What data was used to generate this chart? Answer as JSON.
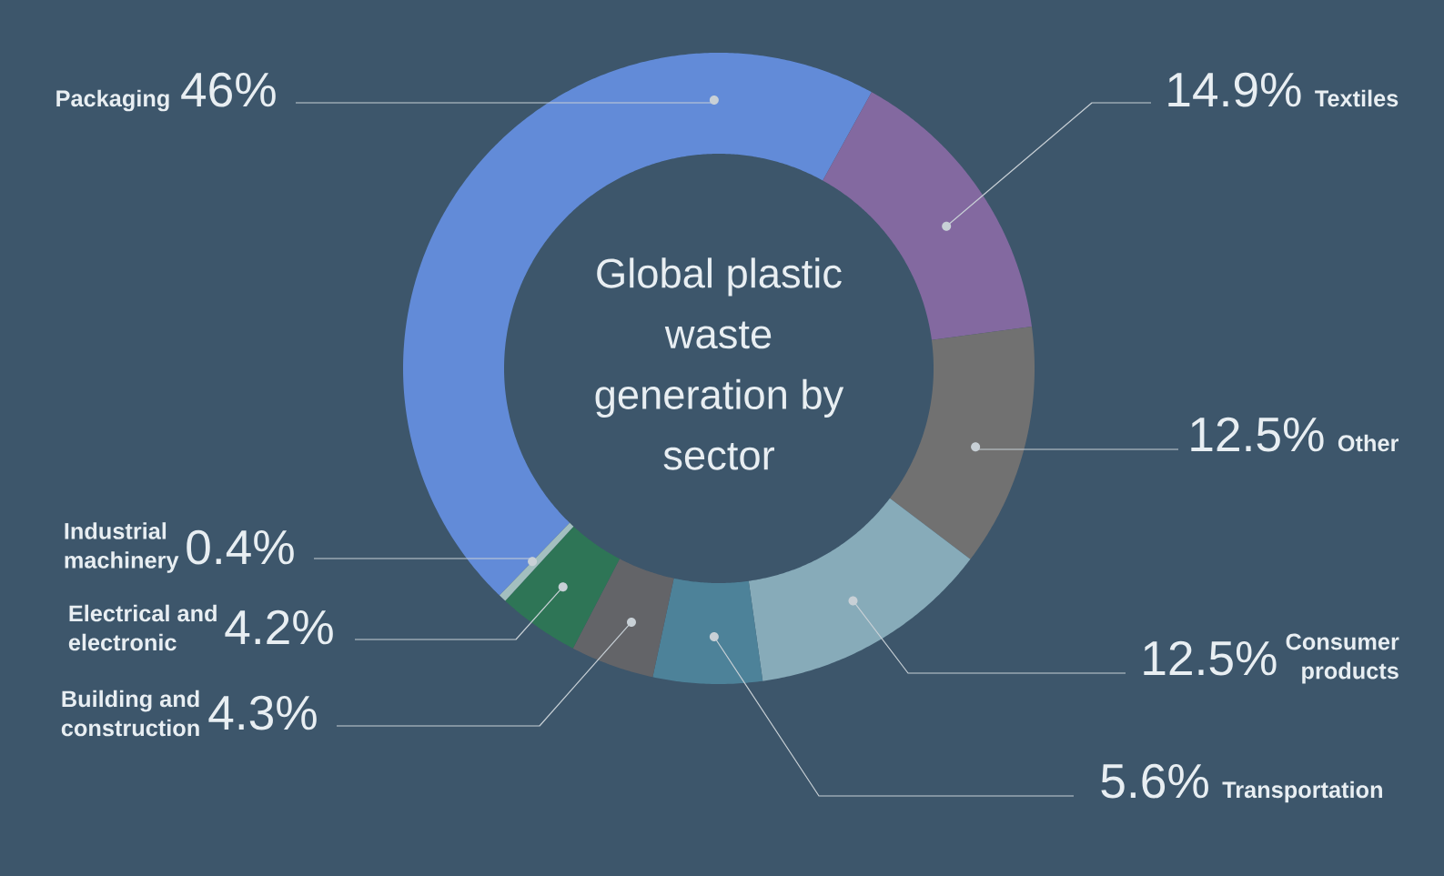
{
  "chart_data": {
    "type": "donut",
    "title": "Global plastic waste generation by sector",
    "categories": [
      "Packaging",
      "Textiles",
      "Other",
      "Consumer products",
      "Transportation",
      "Building and construction",
      "Electrical and electronic",
      "Industrial machinery"
    ],
    "values": [
      46,
      14.9,
      12.5,
      12.5,
      5.6,
      4.3,
      4.2,
      0.4
    ],
    "colors": [
      "#628bd8",
      "#8369a0",
      "#717171",
      "#87abb9",
      "#4d8299",
      "#636468",
      "#2e7556",
      "#a3bfbf"
    ],
    "value_labels": [
      "46%",
      "14.9%",
      "12.5%",
      "12.5%",
      "5.6%",
      "4.3%",
      "4.2%",
      "0.4%"
    ]
  }
}
